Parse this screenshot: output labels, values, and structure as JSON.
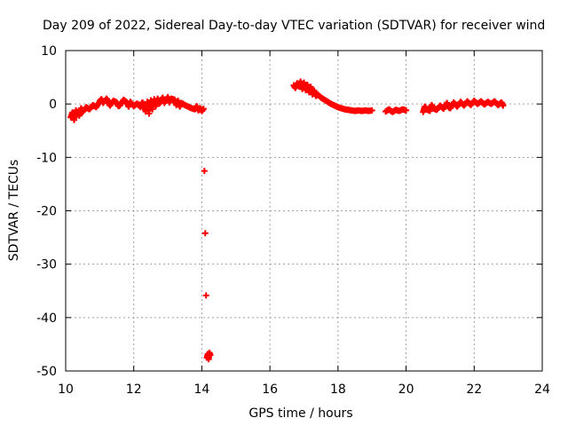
{
  "chart_data": {
    "type": "scatter",
    "title": "Day 209 of 2022, Sidereal Day-to-day VTEC variation (SDTVAR) for receiver wind",
    "xlabel": "GPS time / hours",
    "ylabel": "SDTVAR / TECUs",
    "xlim": [
      10,
      24
    ],
    "ylim": [
      -50,
      10
    ],
    "xticks": [
      10,
      12,
      14,
      16,
      18,
      20,
      22,
      24
    ],
    "yticks": [
      10,
      0,
      -10,
      -20,
      -30,
      -40,
      -50
    ],
    "grid": true,
    "marker": "plus",
    "color": "#ff0000",
    "series": [
      {
        "name": "SDTVAR",
        "points": [
          [
            10.15,
            -2.5
          ],
          [
            10.2,
            -1.6
          ],
          [
            10.25,
            -3.0
          ],
          [
            10.3,
            -1.2
          ],
          [
            10.4,
            -2.2
          ],
          [
            10.45,
            -0.8
          ],
          [
            10.5,
            -1.5
          ],
          [
            10.6,
            -0.6
          ],
          [
            10.7,
            -1.0
          ],
          [
            10.8,
            -0.2
          ],
          [
            10.9,
            -0.6
          ],
          [
            11.0,
            0.5
          ],
          [
            11.05,
            0.9
          ],
          [
            11.1,
            0.2
          ],
          [
            11.2,
            1.0
          ],
          [
            11.25,
            0.4
          ],
          [
            11.3,
            -0.3
          ],
          [
            11.4,
            0.6
          ],
          [
            11.5,
            0.3
          ],
          [
            11.55,
            -0.4
          ],
          [
            11.6,
            -0.2
          ],
          [
            11.7,
            0.8
          ],
          [
            11.8,
            0.3
          ],
          [
            11.85,
            -0.5
          ],
          [
            11.9,
            0.4
          ],
          [
            12.0,
            -0.4
          ],
          [
            12.1,
            0.1
          ],
          [
            12.2,
            -0.6
          ],
          [
            12.25,
            0.3
          ],
          [
            12.3,
            -0.2
          ],
          [
            12.35,
            -1.4
          ],
          [
            12.4,
            0.4
          ],
          [
            12.45,
            -1.8
          ],
          [
            12.5,
            0.7
          ],
          [
            12.55,
            -1.0
          ],
          [
            12.6,
            0.9
          ],
          [
            12.65,
            -0.4
          ],
          [
            12.7,
            1.0
          ],
          [
            12.75,
            0.1
          ],
          [
            12.8,
            0.5
          ],
          [
            12.85,
            1.2
          ],
          [
            12.9,
            0.2
          ],
          [
            13.0,
            1.3
          ],
          [
            13.05,
            0.3
          ],
          [
            13.1,
            1.0
          ],
          [
            13.2,
            0.8
          ],
          [
            13.25,
            -0.2
          ],
          [
            13.3,
            0.6
          ],
          [
            13.35,
            -0.5
          ],
          [
            13.4,
            0.2
          ],
          [
            13.5,
            -0.2
          ],
          [
            13.6,
            -0.5
          ],
          [
            13.7,
            -0.8
          ],
          [
            13.8,
            -1.0
          ],
          [
            13.85,
            -0.4
          ],
          [
            13.9,
            -1.2
          ],
          [
            13.95,
            -0.8
          ],
          [
            14.0,
            -1.3
          ],
          [
            14.05,
            -0.9
          ],
          [
            14.15,
            -47.5
          ],
          [
            14.18,
            -46.8
          ],
          [
            14.2,
            -47.8
          ],
          [
            14.22,
            -46.6
          ],
          [
            14.25,
            -47.0
          ],
          [
            16.7,
            3.5
          ],
          [
            16.75,
            3.0
          ],
          [
            16.8,
            3.9
          ],
          [
            16.85,
            3.3
          ],
          [
            16.9,
            4.2
          ],
          [
            16.95,
            2.8
          ],
          [
            17.0,
            4.0
          ],
          [
            17.05,
            2.6
          ],
          [
            17.1,
            3.6
          ],
          [
            17.15,
            2.2
          ],
          [
            17.2,
            3.2
          ],
          [
            17.25,
            1.8
          ],
          [
            17.3,
            2.5
          ],
          [
            17.35,
            1.5
          ],
          [
            17.4,
            1.8
          ],
          [
            17.5,
            1.2
          ],
          [
            17.6,
            0.8
          ],
          [
            17.7,
            0.4
          ],
          [
            17.8,
            0.0
          ],
          [
            17.9,
            -0.3
          ],
          [
            18.0,
            -0.6
          ],
          [
            18.1,
            -0.8
          ],
          [
            18.2,
            -1.0
          ],
          [
            18.3,
            -1.1
          ],
          [
            18.4,
            -1.2
          ],
          [
            18.5,
            -1.3
          ],
          [
            18.6,
            -1.2
          ],
          [
            18.7,
            -1.3
          ],
          [
            18.8,
            -1.2
          ],
          [
            18.9,
            -1.3
          ],
          [
            19.0,
            -1.2
          ],
          [
            19.4,
            -1.4
          ],
          [
            19.5,
            -1.0
          ],
          [
            19.6,
            -1.5
          ],
          [
            19.7,
            -1.1
          ],
          [
            19.8,
            -1.3
          ],
          [
            19.9,
            -1.0
          ],
          [
            20.0,
            -1.2
          ],
          [
            20.5,
            -1.5
          ],
          [
            20.55,
            -0.5
          ],
          [
            20.6,
            -1.0
          ],
          [
            20.7,
            -1.3
          ],
          [
            20.75,
            -0.2
          ],
          [
            20.8,
            -0.8
          ],
          [
            20.9,
            -1.1
          ],
          [
            21.0,
            -0.3
          ],
          [
            21.1,
            -0.9
          ],
          [
            21.2,
            0.2
          ],
          [
            21.25,
            -0.6
          ],
          [
            21.3,
            -0.8
          ],
          [
            21.4,
            0.3
          ],
          [
            21.5,
            -0.5
          ],
          [
            21.6,
            0.4
          ],
          [
            21.7,
            -0.3
          ],
          [
            21.8,
            0.5
          ],
          [
            21.9,
            -0.2
          ],
          [
            22.0,
            0.6
          ],
          [
            22.1,
            0.0
          ],
          [
            22.2,
            0.5
          ],
          [
            22.3,
            -0.1
          ],
          [
            22.4,
            0.4
          ],
          [
            22.5,
            0.0
          ],
          [
            22.6,
            0.5
          ],
          [
            22.7,
            -0.2
          ],
          [
            22.8,
            0.3
          ],
          [
            22.85,
            -0.3
          ]
        ]
      }
    ]
  }
}
